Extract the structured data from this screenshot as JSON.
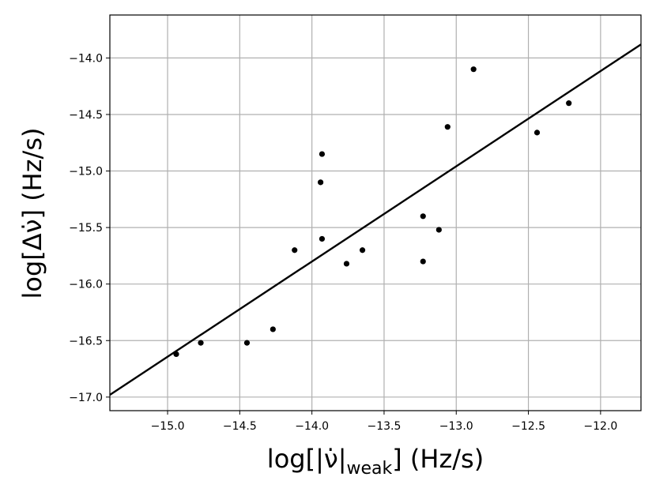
{
  "chart_data": {
    "type": "scatter",
    "xlabel": "log[|ν̇|weak] (Hz/s)",
    "xlabel_parts": {
      "pre": "log[|ν̇|",
      "sub": "weak",
      "post": "] (Hz/s)"
    },
    "ylabel": "log[Δν̇] (Hz/s)",
    "xlim": [
      -15.4,
      -11.72
    ],
    "ylim": [
      -17.12,
      -13.62
    ],
    "xticks": [
      -15.0,
      -14.5,
      -14.0,
      -13.5,
      -13.0,
      -12.5,
      -12.0
    ],
    "xtick_labels": [
      "−15.0",
      "−14.5",
      "−14.0",
      "−13.5",
      "−13.0",
      "−12.5",
      "−12.0"
    ],
    "yticks": [
      -17.0,
      -16.5,
      -16.0,
      -15.5,
      -15.0,
      -14.5,
      -14.0
    ],
    "ytick_labels": [
      "−17.0",
      "−16.5",
      "−16.0",
      "−15.5",
      "−15.0",
      "−14.5",
      "−14.0"
    ],
    "grid": true,
    "points": [
      {
        "x": -14.94,
        "y": -16.62
      },
      {
        "x": -14.77,
        "y": -16.52
      },
      {
        "x": -14.45,
        "y": -16.52
      },
      {
        "x": -14.27,
        "y": -16.4
      },
      {
        "x": -14.12,
        "y": -15.7
      },
      {
        "x": -13.94,
        "y": -15.1
      },
      {
        "x": -13.93,
        "y": -14.85
      },
      {
        "x": -13.93,
        "y": -15.6
      },
      {
        "x": -13.76,
        "y": -15.82
      },
      {
        "x": -13.65,
        "y": -15.7
      },
      {
        "x": -13.23,
        "y": -15.4
      },
      {
        "x": -13.23,
        "y": -15.8
      },
      {
        "x": -13.12,
        "y": -15.52
      },
      {
        "x": -13.06,
        "y": -14.61
      },
      {
        "x": -12.88,
        "y": -14.1
      },
      {
        "x": -12.44,
        "y": -14.66
      },
      {
        "x": -12.22,
        "y": -14.4
      }
    ],
    "fit_line": {
      "x": [
        -15.4,
        -11.72
      ],
      "y": [
        -16.98,
        -13.88
      ]
    }
  }
}
